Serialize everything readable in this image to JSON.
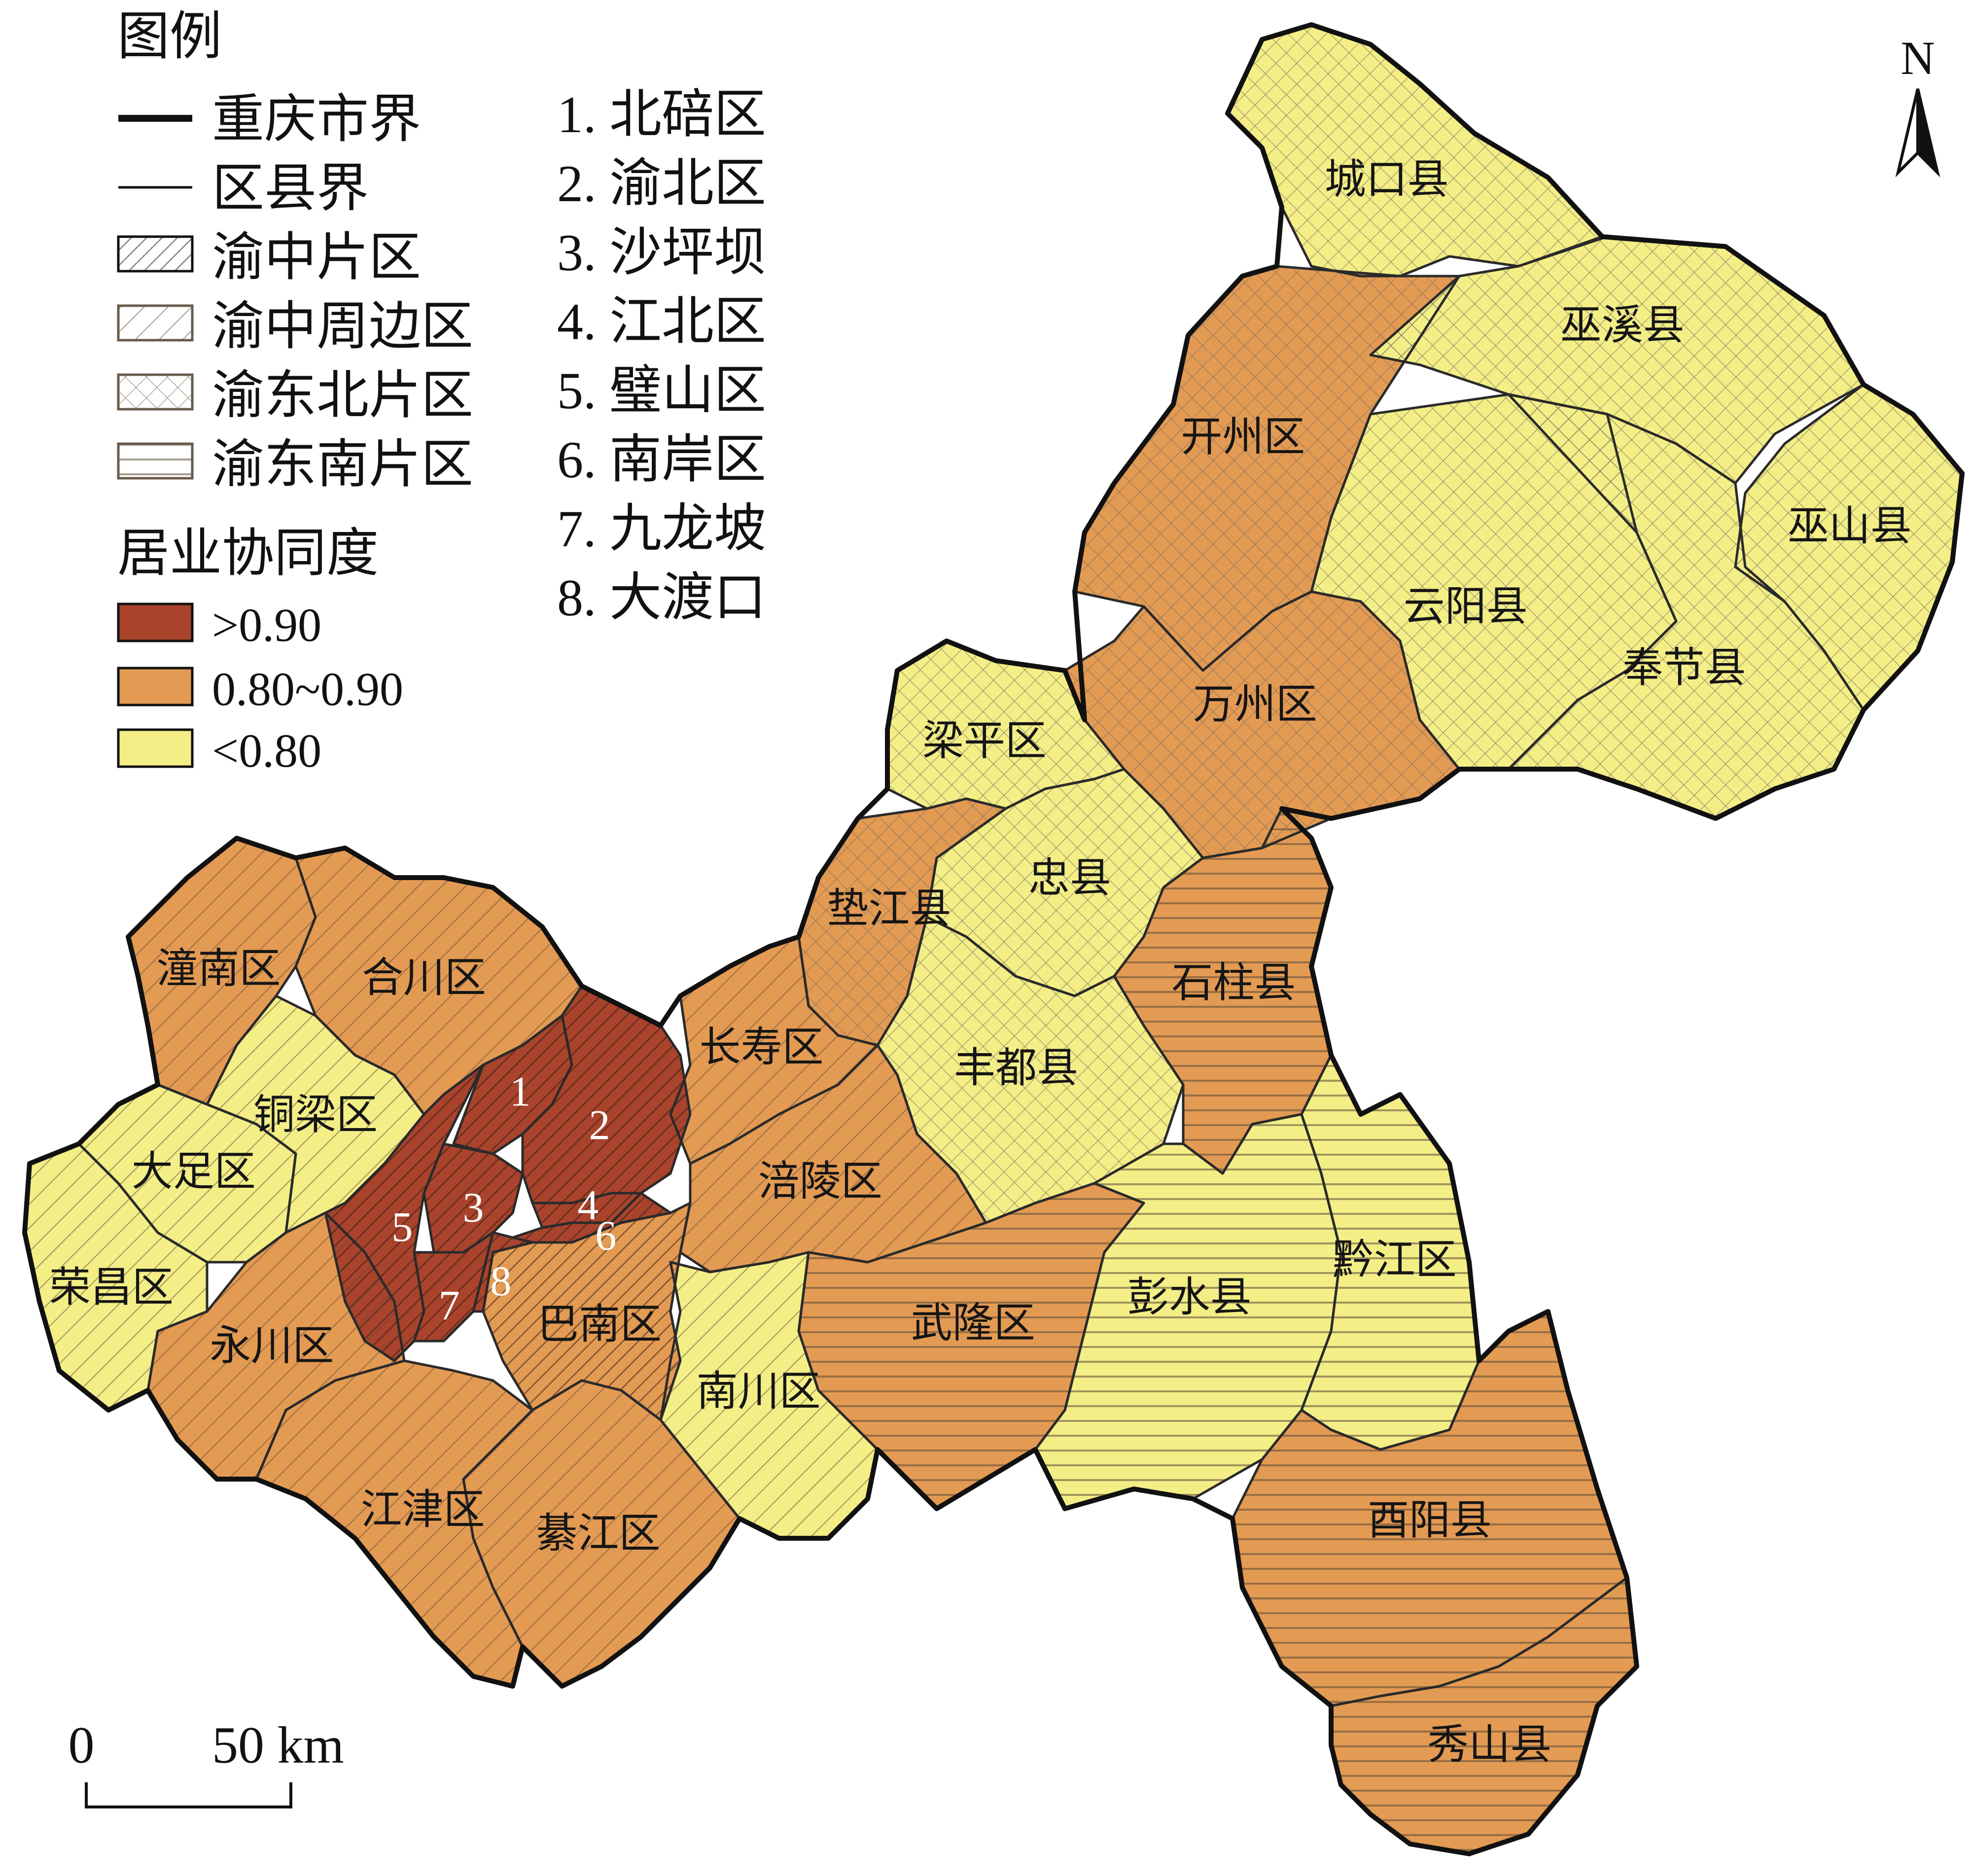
{
  "legend": {
    "title": "图例",
    "lines": [
      {
        "label": "重庆市界"
      },
      {
        "label": "区县界"
      }
    ],
    "zones": [
      {
        "key": "yuzhong",
        "label": "渝中片区",
        "pattern": "diag-dense"
      },
      {
        "key": "periphery",
        "label": "渝中周边区",
        "pattern": "diag"
      },
      {
        "key": "northeast",
        "label": "渝东北片区",
        "pattern": "cross"
      },
      {
        "key": "southeast",
        "label": "渝东南片区",
        "pattern": "horiz"
      }
    ],
    "numbered": [
      {
        "label": "1. 北碚区"
      },
      {
        "label": "2. 渝北区"
      },
      {
        "label": "3. 沙坪坝"
      },
      {
        "label": "4. 江北区"
      },
      {
        "label": "5. 璧山区"
      },
      {
        "label": "6. 南岸区"
      },
      {
        "label": "7. 九龙坡"
      },
      {
        "label": "8. 大渡口"
      }
    ],
    "classes_title": "居业协同度",
    "classes": [
      {
        "key": "high",
        "label": ">0.90",
        "color": "#a9432c"
      },
      {
        "key": "mid",
        "label": "0.80~0.90",
        "color": "#e39a52"
      },
      {
        "key": "low",
        "label": "<0.80",
        "color": "#f3ee86"
      }
    ]
  },
  "north_arrow": {
    "label": "N"
  },
  "scale_bar": {
    "zero": "0",
    "distance": "50 km"
  },
  "districts": [
    {
      "id": "chengkou",
      "name": "城口县",
      "cls": "low",
      "zone": "northeast"
    },
    {
      "id": "kaizhou",
      "name": "开州区",
      "cls": "mid",
      "zone": "northeast"
    },
    {
      "id": "wuxi",
      "name": "巫溪县",
      "cls": "low",
      "zone": "northeast"
    },
    {
      "id": "wushan",
      "name": "巫山县",
      "cls": "low",
      "zone": "northeast"
    },
    {
      "id": "yunyang",
      "name": "云阳县",
      "cls": "low",
      "zone": "northeast"
    },
    {
      "id": "fengjie",
      "name": "奉节县",
      "cls": "low",
      "zone": "northeast"
    },
    {
      "id": "wanzhou",
      "name": "万州区",
      "cls": "mid",
      "zone": "northeast"
    },
    {
      "id": "liangping",
      "name": "梁平区",
      "cls": "low",
      "zone": "northeast"
    },
    {
      "id": "zhongxian",
      "name": "忠县",
      "cls": "low",
      "zone": "northeast"
    },
    {
      "id": "dianjiang",
      "name": "垫江县",
      "cls": "mid",
      "zone": "northeast"
    },
    {
      "id": "fengdu",
      "name": "丰都县",
      "cls": "low",
      "zone": "northeast"
    },
    {
      "id": "shizhu",
      "name": "石柱县",
      "cls": "mid",
      "zone": "southeast"
    },
    {
      "id": "wulong",
      "name": "武隆区",
      "cls": "mid",
      "zone": "southeast"
    },
    {
      "id": "pengshui",
      "name": "彭水县",
      "cls": "low",
      "zone": "southeast"
    },
    {
      "id": "qianjiang",
      "name": "黔江区",
      "cls": "low",
      "zone": "southeast"
    },
    {
      "id": "youyang",
      "name": "酉阳县",
      "cls": "mid",
      "zone": "southeast"
    },
    {
      "id": "xiushan",
      "name": "秀山县",
      "cls": "mid",
      "zone": "southeast"
    },
    {
      "id": "changshou",
      "name": "长寿区",
      "cls": "mid",
      "zone": "periphery"
    },
    {
      "id": "fuling",
      "name": "涪陵区",
      "cls": "mid",
      "zone": "periphery"
    },
    {
      "id": "nanchuan",
      "name": "南川区",
      "cls": "low",
      "zone": "periphery"
    },
    {
      "id": "qijiang",
      "name": "綦江区",
      "cls": "mid",
      "zone": "periphery"
    },
    {
      "id": "jiangjin",
      "name": "江津区",
      "cls": "mid",
      "zone": "periphery"
    },
    {
      "id": "yongchuan",
      "name": "永川区",
      "cls": "mid",
      "zone": "periphery"
    },
    {
      "id": "rongchang",
      "name": "荣昌区",
      "cls": "low",
      "zone": "periphery"
    },
    {
      "id": "dazu",
      "name": "大足区",
      "cls": "low",
      "zone": "periphery"
    },
    {
      "id": "tongliang",
      "name": "铜梁区",
      "cls": "low",
      "zone": "periphery"
    },
    {
      "id": "tongnan",
      "name": "潼南区",
      "cls": "mid",
      "zone": "periphery"
    },
    {
      "id": "hechuan",
      "name": "合川区",
      "cls": "mid",
      "zone": "periphery"
    },
    {
      "id": "banan",
      "name": "巴南区",
      "cls": "mid",
      "zone": "yuzhong"
    },
    {
      "id": "bishan",
      "name": "5",
      "cls": "high",
      "zone": "yuzhong"
    },
    {
      "id": "beibei",
      "name": "1",
      "cls": "high",
      "zone": "yuzhong"
    },
    {
      "id": "yubei",
      "name": "2",
      "cls": "high",
      "zone": "yuzhong"
    },
    {
      "id": "shapingba",
      "name": "3",
      "cls": "high",
      "zone": "yuzhong"
    },
    {
      "id": "jiangbei",
      "name": "4",
      "cls": "high",
      "zone": "yuzhong"
    },
    {
      "id": "nanan",
      "name": "6",
      "cls": "high",
      "zone": "yuzhong"
    },
    {
      "id": "jiulongpo",
      "name": "7",
      "cls": "high",
      "zone": "yuzhong"
    },
    {
      "id": "dadukou",
      "name": "8",
      "cls": "high",
      "zone": "yuzhong"
    }
  ]
}
